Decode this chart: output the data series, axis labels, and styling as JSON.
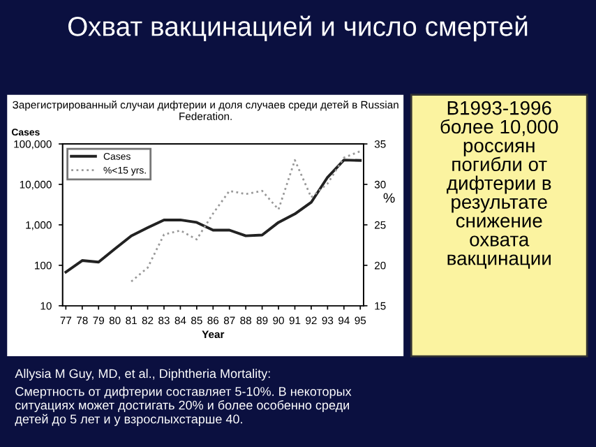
{
  "chart_data": {
    "type": "line",
    "title": "Охват вакцинацией и число смертей",
    "subtitle": "Зарегистрированный случаи дифтерии и доля случаев среди детей в Russian Federation.",
    "xlabel": "Year",
    "ylabel": "Cases",
    "y2label": "%",
    "categories": [
      "77",
      "78",
      "79",
      "80",
      "81",
      "82",
      "83",
      "84",
      "85",
      "86",
      "87",
      "88",
      "89",
      "90",
      "91",
      "92",
      "93",
      "94",
      "95"
    ],
    "series": [
      {
        "name": "Cases",
        "color": "#222222",
        "line_style": "solid",
        "values": [
          68,
          131,
          120,
          255,
          535,
          850,
          1320,
          1320,
          1150,
          740,
          740,
          535,
          560,
          1150,
          1860,
          3600,
          15000,
          40000,
          39000
        ]
      },
      {
        "name": "%<15 yrs.",
        "color": "#999999",
        "line_style": "dotted",
        "axis": "y2",
        "values": [
          null,
          null,
          null,
          null,
          18.0,
          19.7,
          23.8,
          24.3,
          23.2,
          26.4,
          29.2,
          28.8,
          29.2,
          26.9,
          33.0,
          28.4,
          30.1,
          33.3,
          34.1
        ]
      }
    ],
    "log": "y",
    "ylim": [
      10,
      100000
    ],
    "yticks": [
      {
        "value": 10,
        "label": "10"
      },
      {
        "value": 100,
        "label": "100"
      },
      {
        "value": 1000,
        "label": "1,000"
      },
      {
        "value": 10000,
        "label": "10,000"
      },
      {
        "value": 100000,
        "label": "100,000"
      }
    ],
    "y2lim": [
      15,
      35
    ],
    "y2ticks": [
      15,
      20,
      25,
      30,
      35
    ],
    "grid": false,
    "legend": "top left",
    "marker": "none",
    "annotations": [
      "В1993-1996\nболее 10,000\nроссиян\nпогибли от\nдифтерии в\nрезультате\nснижение\nохвата\nвакцинации",
      "Allysia M Guy, MD, et al., Diphtheria Mortality:",
      "Смертность от дифтерии составляет 5-10%. В некоторых\nситуациях может достигать 20% и более особенно среди\nдетей до 5 лет и у взрослыхстарше 40."
    ]
  }
}
